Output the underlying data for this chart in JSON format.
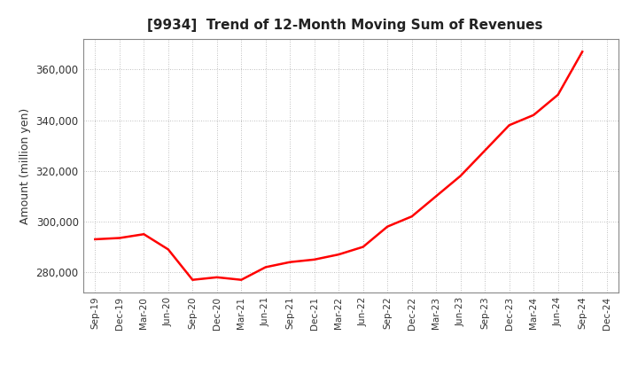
{
  "title": "[9934]  Trend of 12-Month Moving Sum of Revenues",
  "ylabel": "Amount (million yen)",
  "line_color": "#FF0000",
  "line_width": 1.8,
  "background_color": "#FFFFFF",
  "grid_color": "#AAAAAA",
  "ylim": [
    272000,
    372000
  ],
  "yticks": [
    280000,
    300000,
    320000,
    340000,
    360000
  ],
  "x_labels": [
    "Sep-19",
    "Dec-19",
    "Mar-20",
    "Jun-20",
    "Sep-20",
    "Dec-20",
    "Mar-21",
    "Jun-21",
    "Sep-21",
    "Dec-21",
    "Mar-22",
    "Jun-22",
    "Sep-22",
    "Dec-22",
    "Mar-23",
    "Jun-23",
    "Sep-23",
    "Dec-23",
    "Mar-24",
    "Jun-24",
    "Sep-24",
    "Dec-24"
  ],
  "data_x_indices": [
    0,
    1,
    2,
    3,
    4,
    5,
    6,
    7,
    8,
    9,
    10,
    11,
    12,
    13,
    14,
    15,
    16,
    17,
    18,
    19,
    20
  ],
  "values": [
    293000,
    293500,
    295000,
    289000,
    277000,
    278000,
    277000,
    282000,
    284000,
    285000,
    287000,
    290000,
    298000,
    302000,
    310000,
    318000,
    328000,
    338000,
    342000,
    350000,
    367000
  ]
}
